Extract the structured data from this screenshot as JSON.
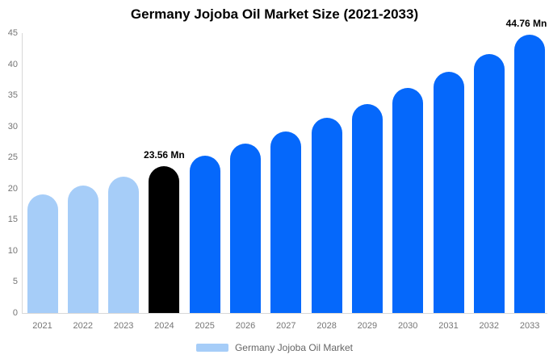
{
  "title": "Germany Jojoba Oil Market Size (2021-2033)",
  "legend": {
    "label": "Germany Jojoba Oil Market",
    "swatch_color": "#a6cdf8"
  },
  "colors": {
    "historical_bar": "#a6cdf8",
    "highlight_bar": "#000000",
    "forecast_bar": "#0568fb",
    "axis_line": "#d8d8d8",
    "tick_text": "#757575",
    "title_text": "#000000",
    "annotation_text": "#000000",
    "legend_text": "#666666",
    "background": "#ffffff"
  },
  "chart_data": {
    "type": "bar",
    "title": "Germany Jojoba Oil Market Size (2021-2033)",
    "xlabel": "",
    "ylabel": "",
    "unit": "Mn",
    "categories": [
      "2021",
      "2022",
      "2023",
      "2024",
      "2025",
      "2026",
      "2027",
      "2028",
      "2029",
      "2030",
      "2031",
      "2032",
      "2033"
    ],
    "values": [
      19.02,
      20.43,
      21.94,
      23.56,
      25.3,
      27.17,
      29.18,
      31.33,
      33.65,
      36.14,
      38.81,
      41.68,
      44.76
    ],
    "bar_roles": [
      "historical",
      "historical",
      "historical",
      "highlight",
      "forecast",
      "forecast",
      "forecast",
      "forecast",
      "forecast",
      "forecast",
      "forecast",
      "forecast",
      "forecast"
    ],
    "annotations": [
      {
        "category": "2024",
        "label": "23.56 Mn"
      },
      {
        "category": "2033",
        "label": "44.76 Mn"
      }
    ],
    "ylim": [
      0,
      45
    ],
    "yticks": [
      0,
      5,
      10,
      15,
      20,
      25,
      30,
      35,
      40,
      45
    ],
    "grid": false,
    "legend_position": "bottom",
    "legend_entries": [
      "Germany Jojoba Oil Market"
    ]
  }
}
